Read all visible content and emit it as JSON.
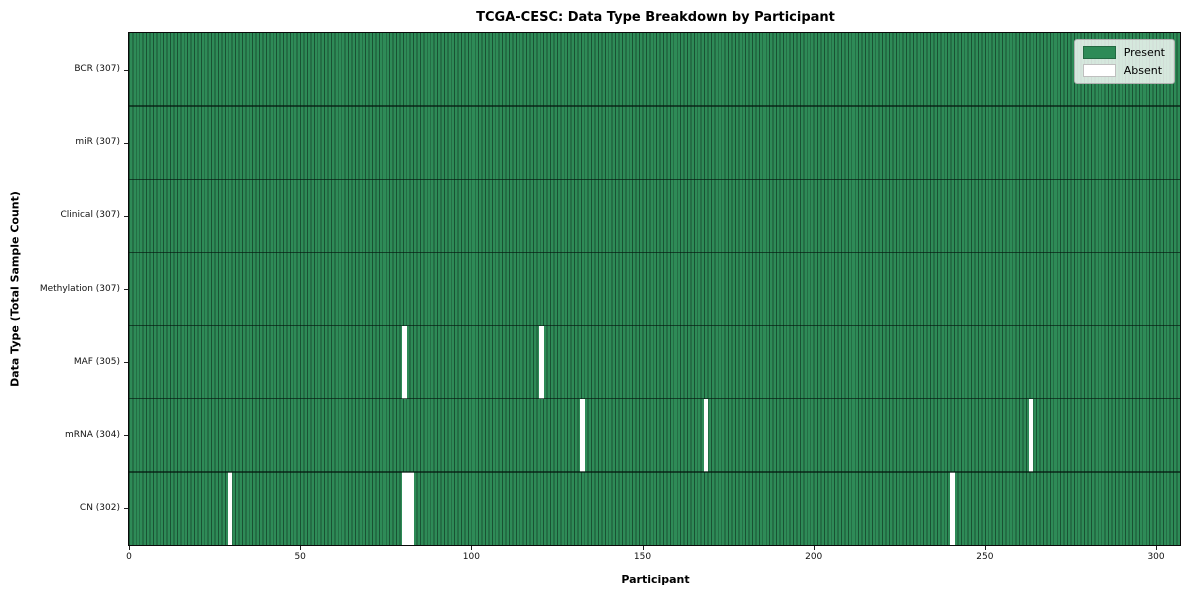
{
  "chart_data": {
    "type": "heatmap",
    "title": "TCGA-CESC: Data Type Breakdown by Participant",
    "xlabel": "Participant",
    "ylabel": "Data Type (Total Sample Count)",
    "n_participants": 307,
    "x_ticks": [
      0,
      50,
      100,
      150,
      200,
      250,
      300
    ],
    "xlim": [
      0,
      307
    ],
    "grid": "cell-edges",
    "legend_position": "upper right",
    "rows": [
      {
        "label": "BCR (307)",
        "data_type": "BCR",
        "present_count": 307,
        "absent_participants": []
      },
      {
        "label": "miR (307)",
        "data_type": "miR",
        "present_count": 307,
        "absent_participants": []
      },
      {
        "label": "Clinical (307)",
        "data_type": "Clinical",
        "present_count": 307,
        "absent_participants": []
      },
      {
        "label": "Methylation (307)",
        "data_type": "Methylation",
        "present_count": 307,
        "absent_participants": []
      },
      {
        "label": "MAF (305)",
        "data_type": "MAF",
        "present_count": 305,
        "absent_participants": [
          80,
          120
        ]
      },
      {
        "label": "mRNA (304)",
        "data_type": "mRNA",
        "present_count": 304,
        "absent_participants": [
          132,
          168,
          263
        ]
      },
      {
        "label": "CN (302)",
        "data_type": "CN",
        "present_count": 302,
        "absent_participants": [
          29,
          80,
          81,
          82,
          240
        ]
      }
    ],
    "legend": [
      {
        "label": "Present",
        "color": "#2e8b57"
      },
      {
        "label": "Absent",
        "color": "#ffffff"
      }
    ],
    "colors": {
      "present": "#2e8b57",
      "absent": "#ffffff",
      "cell_edge": "rgba(8,35,22,0.55)",
      "plot_border": "#0a0a0a"
    }
  }
}
